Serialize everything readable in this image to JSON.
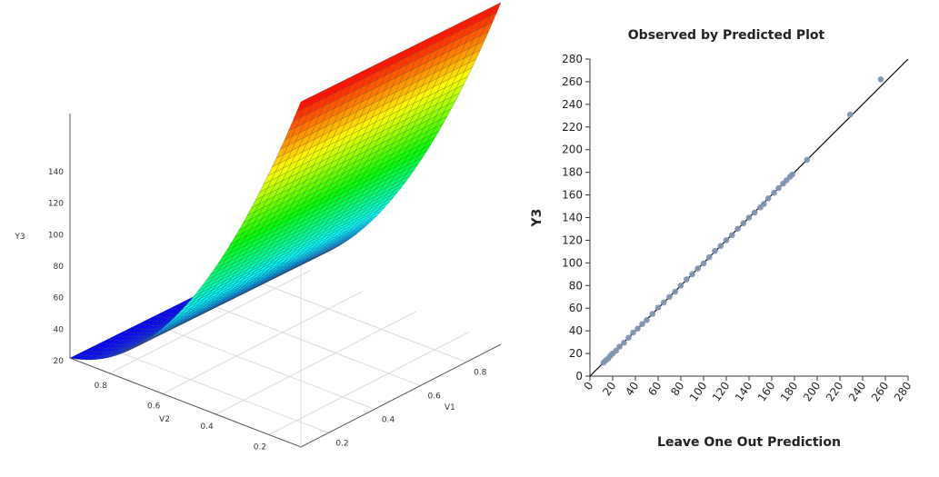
{
  "chart_data": [
    {
      "type": "surface3d",
      "zlabel": "Y3",
      "xlabel": "V1",
      "ylabel": "V2",
      "z_ticks": [
        20,
        40,
        60,
        80,
        100,
        120,
        140
      ],
      "v1_ticks": [
        0.2,
        0.4,
        0.6,
        0.8
      ],
      "v2_ticks": [
        0.2,
        0.4,
        0.6,
        0.8
      ],
      "zlim": [
        18,
        148
      ],
      "v1_range": [
        0.08,
        0.95
      ],
      "v2_range": [
        0.08,
        0.95
      ],
      "surface": {
        "description_of_shape": "Y3 increases quadratically with V2 and is nearly constant along V1",
        "corners": [
          {
            "v1": 0.08,
            "v2": 0.95,
            "y3": 18
          },
          {
            "v1": 0.95,
            "v2": 0.95,
            "y3": 18
          },
          {
            "v1": 0.08,
            "v2": 0.08,
            "y3": 148
          },
          {
            "v1": 0.95,
            "v2": 0.08,
            "y3": 148
          }
        ]
      },
      "colormap": [
        "#0000ff",
        "#00ffff",
        "#00ff00",
        "#ffff00",
        "#ff0000"
      ]
    },
    {
      "type": "scatter",
      "title": "Observed by Predicted Plot",
      "xlabel": "Leave One Out Prediction",
      "ylabel": "Y3",
      "xlim": [
        0,
        280
      ],
      "ylim": [
        0,
        280
      ],
      "x_ticks": [
        0,
        20,
        40,
        60,
        80,
        100,
        120,
        140,
        160,
        180,
        200,
        220,
        240,
        260,
        280
      ],
      "y_ticks": [
        0,
        20,
        40,
        60,
        80,
        100,
        120,
        140,
        160,
        180,
        200,
        220,
        240,
        260,
        280
      ],
      "reference_line": {
        "from": [
          0,
          0
        ],
        "to": [
          280,
          280
        ]
      },
      "point_color": "#7f93b3",
      "series": [
        {
          "points": [
            [
              12,
              12
            ],
            [
              14,
              14
            ],
            [
              16,
              15.5
            ],
            [
              18,
              18
            ],
            [
              20,
              20
            ],
            [
              23,
              22.5
            ],
            [
              26,
              26
            ],
            [
              30,
              29.5
            ],
            [
              34,
              34
            ],
            [
              38,
              38.5
            ],
            [
              42,
              42
            ],
            [
              46,
              46
            ],
            [
              50,
              49.5
            ],
            [
              55,
              55
            ],
            [
              60,
              60.5
            ],
            [
              65,
              65
            ],
            [
              70,
              70
            ],
            [
              75,
              74.5
            ],
            [
              80,
              80
            ],
            [
              85,
              85.5
            ],
            [
              90,
              90
            ],
            [
              95,
              95
            ],
            [
              100,
              99.5
            ],
            [
              105,
              105
            ],
            [
              110,
              110.5
            ],
            [
              115,
              115
            ],
            [
              120,
              120
            ],
            [
              125,
              124.5
            ],
            [
              130,
              130
            ],
            [
              135,
              135
            ],
            [
              140,
              140
            ],
            [
              145,
              144.5
            ],
            [
              150,
              149
            ],
            [
              153,
              152
            ],
            [
              157,
              157
            ],
            [
              162,
              162
            ],
            [
              166,
              166
            ],
            [
              170,
              170
            ],
            [
              173,
              173
            ],
            [
              176,
              176
            ],
            [
              178,
              178
            ],
            [
              191,
              191
            ],
            [
              229,
              231
            ],
            [
              256,
              262
            ]
          ]
        }
      ]
    }
  ]
}
